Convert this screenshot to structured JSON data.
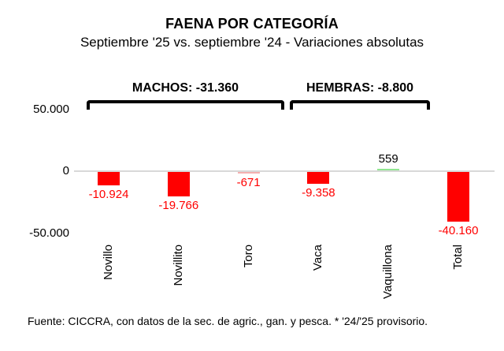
{
  "chart_data": {
    "type": "bar",
    "title": "FAENA POR CATEGORÍA",
    "subtitle": "Septiembre '25 vs. septiembre '24 - Variaciones absolutas",
    "categories": [
      "Novillo",
      "Novillito",
      "Toro",
      "Vaca",
      "Vaquillona",
      "Total"
    ],
    "values": [
      -10924,
      -19766,
      -671,
      -9358,
      559,
      -40160
    ],
    "value_labels": [
      "-10.924",
      "-19.766",
      "-671",
      "-9.358",
      "559",
      "-40.160"
    ],
    "bar_colors": [
      "#FF0000",
      "#FF0000",
      "#F4B0B0",
      "#FF0000",
      "#90E690",
      "#FF0000"
    ],
    "value_label_colors": [
      "#FF0000",
      "#FF0000",
      "#FF0000",
      "#FF0000",
      "#000000",
      "#FF0000"
    ],
    "groups": [
      {
        "label": "MACHOS: -31.360",
        "value": -31360,
        "from": "Novillo",
        "to": "Toro"
      },
      {
        "label": "HEMBRAS: -8.800",
        "value": -8800,
        "from": "Vaca",
        "to": "Vaquillona"
      }
    ],
    "y_axis": {
      "ticks": [
        "50.000",
        "0",
        "-50.000"
      ],
      "ylim": [
        -50000,
        50000
      ],
      "grid": false
    },
    "legend": "none",
    "axis_color": "#D8D8D8",
    "footer": "Fuente: CICCRA, con datos de la sec. de agric., gan. y pesca. * '24/'25 provisorio."
  }
}
